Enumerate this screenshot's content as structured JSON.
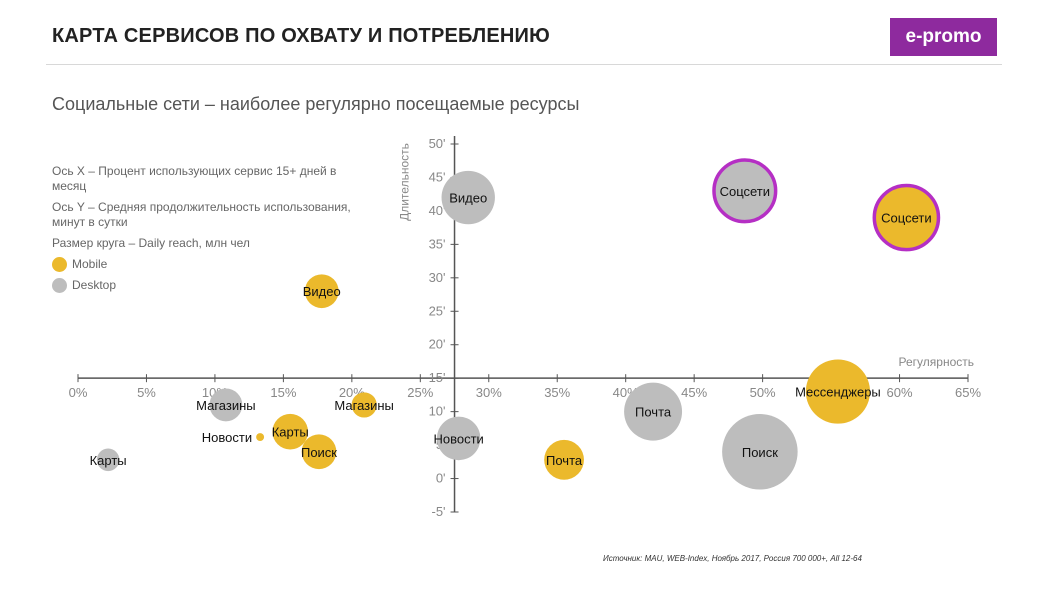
{
  "header": {
    "title": "КАРТА СЕРВИСОВ ПО ОХВАТУ И ПОТРЕБЛЕНИЮ",
    "brand": "e-promo"
  },
  "subtitle": "Социальные сети – наиболее регулярно посещаемые ресурсы",
  "legend": {
    "x_note": "Ось X – Процент использующих сервис 15+ дней в месяц",
    "y_note": "Ось Y – Средняя продолжительность использования, минут в сутки",
    "size_note": "Размер круга – Daily reach, млн чел",
    "mobile_label": "Mobile",
    "desktop_label": "Desktop"
  },
  "source": "Источник: MAU, WEB-Index, Ноябрь 2017, Россия 700 000+, All 12-64",
  "colors": {
    "mobile": "#ebb92c",
    "desktop": "#bdbdbd",
    "highlight": "#b52fc4",
    "brand": "#8e2a9e"
  },
  "chart_data": {
    "type": "scatter",
    "xlabel": "Регулярность",
    "ylabel": "Длительность",
    "x_ticks": [
      "0%",
      "5%",
      "10%",
      "15%",
      "20%",
      "25%",
      "30%",
      "35%",
      "40%",
      "45%",
      "50%",
      "55%",
      "60%",
      "65%"
    ],
    "y_ticks": [
      "-5'",
      "0'",
      "5'",
      "10'",
      "15'",
      "20'",
      "25'",
      "30'",
      "35'",
      "40'",
      "45'",
      "50'"
    ],
    "xlim": [
      0,
      65
    ],
    "ylim": [
      -5,
      50
    ],
    "x_axis_at_y": 15,
    "y_axis_at_x": 27.5,
    "series": [
      {
        "name": "Mobile",
        "points": [
          {
            "label": "Соцсети",
            "x": 60.5,
            "y": 39.0,
            "size": 6.5,
            "highlight": true
          },
          {
            "label": "Мессенджеры",
            "x": 55.5,
            "y": 13.0,
            "size": 6.5
          },
          {
            "label": "Почта",
            "x": 35.5,
            "y": 2.8,
            "size": 2.5
          },
          {
            "label": "Видео",
            "x": 17.8,
            "y": 28.0,
            "size": 1.8
          },
          {
            "label": "Магазины",
            "x": 20.9,
            "y": 11.0,
            "size": 1.0
          },
          {
            "label": "Карты",
            "x": 15.5,
            "y": 7.0,
            "size": 2.0
          },
          {
            "label": "Поиск",
            "x": 17.6,
            "y": 4.0,
            "size": 1.9
          },
          {
            "label": "Новости",
            "x": 13.3,
            "y": 6.2,
            "size": 0.1
          }
        ]
      },
      {
        "name": "Desktop",
        "points": [
          {
            "label": "Соцсети",
            "x": 48.7,
            "y": 43.0,
            "size": 6.0,
            "highlight": true
          },
          {
            "label": "Видео",
            "x": 28.5,
            "y": 42.0,
            "size": 4.5
          },
          {
            "label": "Почта",
            "x": 42.0,
            "y": 10.0,
            "size": 5.3
          },
          {
            "label": "Поиск",
            "x": 49.8,
            "y": 4.0,
            "size": 9.0
          },
          {
            "label": "Новости",
            "x": 27.8,
            "y": 6.0,
            "size": 3.0
          },
          {
            "label": "Магазины",
            "x": 10.8,
            "y": 11.0,
            "size": 1.7
          },
          {
            "label": "Карты",
            "x": 2.2,
            "y": 2.8,
            "size": 0.8
          }
        ]
      }
    ]
  }
}
